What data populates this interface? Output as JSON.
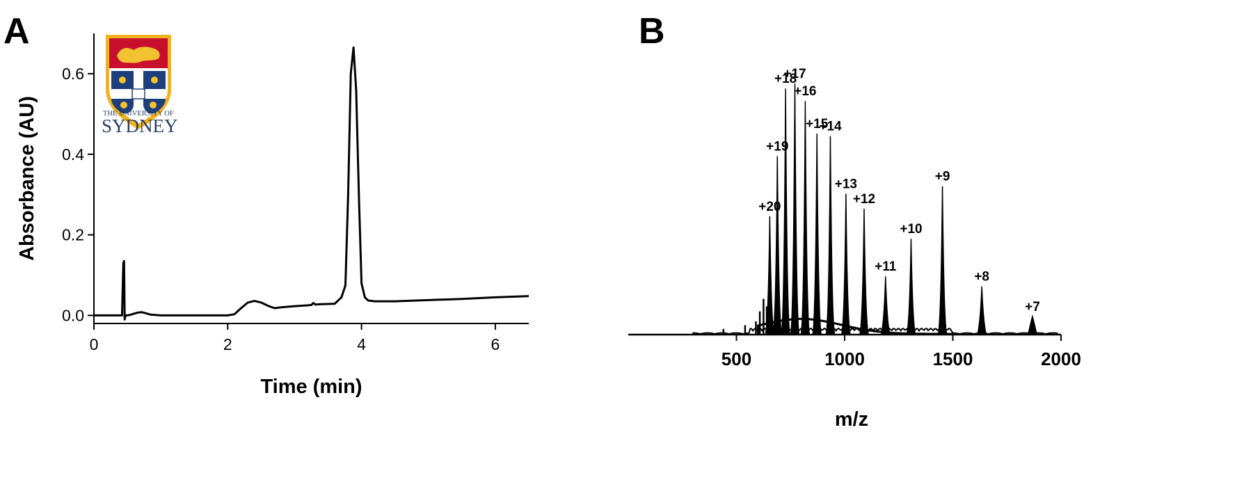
{
  "panels": {
    "a_label": "A",
    "b_label": "B"
  },
  "logo": {
    "line1": "THE UNIVERSITY OF",
    "line2": "SYDNEY",
    "colors": {
      "shield_red": "#c8102e",
      "shield_gold": "#f2b21b",
      "shield_blue": "#1f3e7c",
      "lion": "#f2c230"
    }
  },
  "chart_data": [
    {
      "type": "line",
      "xlabel": "Time (min)",
      "ylabel": "Absorbance (AU)",
      "xlim": [
        0,
        6.5
      ],
      "ylim": [
        -0.02,
        0.7
      ],
      "xticks": [
        "0",
        "2",
        "4",
        "6"
      ],
      "yticks": [
        "0.0",
        "0.2",
        "0.4",
        "0.6"
      ],
      "grid": false,
      "series": [
        {
          "x": [
            0.0,
            0.3,
            0.42,
            0.44,
            0.45,
            0.46,
            0.47,
            0.48,
            0.5,
            0.55,
            0.65,
            0.72,
            0.85,
            1.0,
            1.5,
            2.0,
            2.1,
            2.2,
            2.3,
            2.4,
            2.5,
            2.6,
            2.7,
            2.8,
            3.0,
            3.2,
            3.25,
            3.28,
            3.31,
            3.4,
            3.6,
            3.7,
            3.73,
            3.76,
            3.8,
            3.84,
            3.88,
            3.92,
            3.96,
            4.0,
            4.05,
            4.1,
            4.2,
            4.5,
            5.0,
            5.5,
            6.0,
            6.5
          ],
          "y": [
            0.0,
            0.0,
            0.0,
            0.13,
            0.135,
            -0.01,
            0.0,
            0.0,
            0.0,
            0.002,
            0.007,
            0.008,
            0.002,
            0.0,
            0.0,
            0.0,
            0.003,
            0.018,
            0.032,
            0.036,
            0.032,
            0.024,
            0.018,
            0.02,
            0.023,
            0.025,
            0.026,
            0.031,
            0.027,
            0.028,
            0.029,
            0.045,
            0.06,
            0.075,
            0.3,
            0.6,
            0.665,
            0.56,
            0.3,
            0.08,
            0.045,
            0.037,
            0.035,
            0.035,
            0.038,
            0.041,
            0.045,
            0.048
          ]
        }
      ]
    },
    {
      "type": "bar",
      "xlabel": "m/z",
      "ylabel": "",
      "xlim": [
        0,
        2000
      ],
      "ylim": [
        0,
        1
      ],
      "xticks": [
        "500",
        "1000",
        "1500",
        "2000"
      ],
      "grid": false,
      "peaks": [
        {
          "label": "+20",
          "x": 654,
          "value": 0.47
        },
        {
          "label": "+19",
          "x": 689,
          "value": 0.71
        },
        {
          "label": "+18",
          "x": 727,
          "value": 0.98
        },
        {
          "label": "+17",
          "x": 770,
          "value": 1.0
        },
        {
          "label": "+16",
          "x": 818,
          "value": 0.93
        },
        {
          "label": "+15",
          "x": 872,
          "value": 0.8
        },
        {
          "label": "+14",
          "x": 934,
          "value": 0.79
        },
        {
          "label": "+13",
          "x": 1006,
          "value": 0.56
        },
        {
          "label": "+12",
          "x": 1090,
          "value": 0.5
        },
        {
          "label": "+11",
          "x": 1189,
          "value": 0.23
        },
        {
          "label": "+10",
          "x": 1307,
          "value": 0.38
        },
        {
          "label": "+9",
          "x": 1452,
          "value": 0.59
        },
        {
          "label": "+8",
          "x": 1634,
          "value": 0.19
        },
        {
          "label": "+7",
          "x": 1868,
          "value": 0.07
        }
      ],
      "minor_peaks": [
        {
          "x": 440,
          "value": 0.02
        },
        {
          "x": 540,
          "value": 0.035
        },
        {
          "x": 590,
          "value": 0.05
        },
        {
          "x": 608,
          "value": 0.09
        },
        {
          "x": 625,
          "value": 0.14
        },
        {
          "x": 640,
          "value": 0.11
        }
      ]
    }
  ]
}
